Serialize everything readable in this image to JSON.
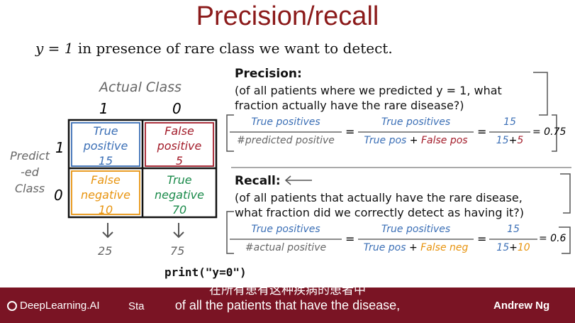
{
  "slide": {
    "title": "Precision/recall",
    "subtitle_math": "y = 1",
    "subtitle_text": " in presence of rare class we want to detect."
  },
  "matrix": {
    "actual_label": "Actual Class",
    "actual_1": "1",
    "actual_0": "0",
    "predicted_label_1": "Predict",
    "predicted_label_2": "-ed",
    "predicted_label_3": "Class",
    "predicted_1": "1",
    "predicted_0": "0",
    "tp_1": "True",
    "tp_2": "positive",
    "tp_n": "15",
    "fp_1": "False",
    "fp_2": "positive",
    "fp_n": "5",
    "fn_1": "False",
    "fn_2": "negative",
    "fn_n": "10",
    "tn_1": "True",
    "tn_2": "negative",
    "tn_n": "70",
    "col_total_1": "25",
    "col_total_0": "75"
  },
  "precision": {
    "heading": "Precision:",
    "line1": "(of all patients where we predicted y = 1, what",
    "line2": "fraction actually have the rare disease?)",
    "f1_num": "True positives",
    "f1_den": "#predicted positive",
    "f2_num": "True positives",
    "f2_den_a": "True pos",
    "f2_den_plus": " + ",
    "f2_den_b": "False pos",
    "f3_num": "15",
    "f3_den_a": "15",
    "f3_den_plus": "+",
    "f3_den_b": "5",
    "eq": "=",
    "result": "= 0.75"
  },
  "recall": {
    "heading": "Recall:",
    "line1": "(of all patients that actually have the rare disease,",
    "line2": "what fraction did we correctly detect as having it?)",
    "f1_num": "True positives",
    "f1_den": "#actual positive",
    "f2_num": "True positives",
    "f2_den_a": "True pos",
    "f2_den_plus": " + ",
    "f2_den_b": "False neg",
    "f3_num": "15",
    "f3_den_a": "15",
    "f3_den_plus": "+",
    "f3_den_b": "10",
    "eq": "=",
    "result": "= 0.6"
  },
  "code": "print(\"y=0\")",
  "footer": {
    "logo_text": "DeepLearning.AI",
    "stan_text": "Sta",
    "author": "Andrew Ng",
    "subtitle_cn": "在所有患有这种疾病的患者中",
    "subtitle_en": "of all the patients that have the disease,"
  },
  "colors": {
    "title": "#8b1a1a",
    "tp": "#3b6fb6",
    "fp": "#a31c2a",
    "fn": "#e8940f",
    "tn": "#1a8a4a",
    "footer": "#7a1424"
  }
}
